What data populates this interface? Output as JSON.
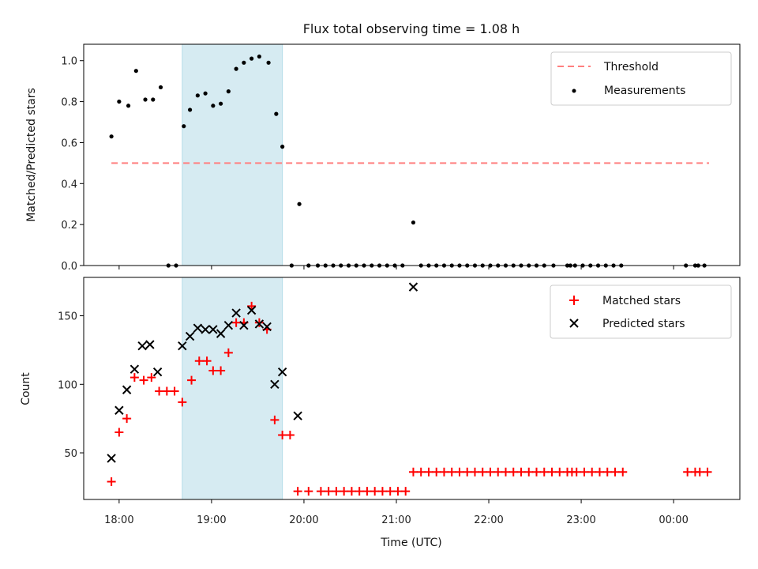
{
  "colors": {
    "threshold": "#ff7f7f",
    "measurement": "#000000",
    "matched": "#ff0000",
    "predicted": "#000000",
    "span": "#add8e6"
  },
  "chart_data": {
    "title": "Flux total observing time = 1.08 h",
    "xlabel": "Time (UTC)",
    "x_type": "time",
    "xlim": [
      "17:37",
      "00:43"
    ],
    "x_ticks": [
      "18:00",
      "19:00",
      "20:00",
      "21:00",
      "22:00",
      "23:00",
      "00:00"
    ],
    "highlight_span": [
      "18:41",
      "19:46"
    ],
    "grid": false,
    "panels": [
      {
        "type": "scatter",
        "ylabel": "Matched/Predicted stars",
        "ylim": [
          0.0,
          1.08
        ],
        "y_ticks": [
          "0.0",
          "0.2",
          "0.4",
          "0.6",
          "0.8",
          "1.0"
        ],
        "legend_position": "top-right",
        "threshold": {
          "name": "Threshold",
          "value": 0.5,
          "x_range": [
            "17:55",
            "00:23"
          ]
        },
        "series": [
          {
            "name": "Measurements",
            "marker": "dot",
            "points": [
              [
                "17:55",
                0.63
              ],
              [
                "18:00",
                0.8
              ],
              [
                "18:06",
                0.78
              ],
              [
                "18:11",
                0.95
              ],
              [
                "18:17",
                0.81
              ],
              [
                "18:22",
                0.81
              ],
              [
                "18:27",
                0.87
              ],
              [
                "18:32",
                0.0
              ],
              [
                "18:37",
                0.0
              ],
              [
                "18:42",
                0.68
              ],
              [
                "18:46",
                0.76
              ],
              [
                "18:51",
                0.83
              ],
              [
                "18:56",
                0.84
              ],
              [
                "19:01",
                0.78
              ],
              [
                "19:06",
                0.79
              ],
              [
                "19:11",
                0.85
              ],
              [
                "19:16",
                0.96
              ],
              [
                "19:21",
                0.99
              ],
              [
                "19:26",
                1.01
              ],
              [
                "19:31",
                1.02
              ],
              [
                "19:37",
                0.99
              ],
              [
                "19:42",
                0.74
              ],
              [
                "19:46",
                0.58
              ],
              [
                "19:52",
                0.0
              ],
              [
                "19:57",
                0.3
              ],
              [
                "20:03",
                0.0
              ],
              [
                "20:09",
                0.0
              ],
              [
                "20:14",
                0.0
              ],
              [
                "20:19",
                0.0
              ],
              [
                "20:24",
                0.0
              ],
              [
                "20:29",
                0.0
              ],
              [
                "20:34",
                0.0
              ],
              [
                "20:39",
                0.0
              ],
              [
                "20:44",
                0.0
              ],
              [
                "20:49",
                0.0
              ],
              [
                "20:54",
                0.0
              ],
              [
                "20:59",
                0.0
              ],
              [
                "21:04",
                0.0
              ],
              [
                "21:11",
                0.21
              ],
              [
                "21:16",
                0.0
              ],
              [
                "21:21",
                0.0
              ],
              [
                "21:26",
                0.0
              ],
              [
                "21:31",
                0.0
              ],
              [
                "21:36",
                0.0
              ],
              [
                "21:41",
                0.0
              ],
              [
                "21:46",
                0.0
              ],
              [
                "21:51",
                0.0
              ],
              [
                "21:56",
                0.0
              ],
              [
                "22:01",
                0.0
              ],
              [
                "22:06",
                0.0
              ],
              [
                "22:11",
                0.0
              ],
              [
                "22:16",
                0.0
              ],
              [
                "22:21",
                0.0
              ],
              [
                "22:26",
                0.0
              ],
              [
                "22:31",
                0.0
              ],
              [
                "22:36",
                0.0
              ],
              [
                "22:42",
                0.0
              ],
              [
                "22:51",
                0.0
              ],
              [
                "22:53",
                0.0
              ],
              [
                "22:56",
                0.0
              ],
              [
                "23:01",
                0.0
              ],
              [
                "23:06",
                0.0
              ],
              [
                "23:11",
                0.0
              ],
              [
                "23:16",
                0.0
              ],
              [
                "23:21",
                0.0
              ],
              [
                "23:26",
                0.0
              ],
              [
                "00:08",
                0.0
              ],
              [
                "00:14",
                0.0
              ],
              [
                "00:16",
                0.0
              ],
              [
                "00:20",
                0.0
              ]
            ]
          }
        ]
      },
      {
        "type": "scatter",
        "ylabel": "Count",
        "ylim": [
          16,
          178
        ],
        "y_ticks": [
          "50",
          "100",
          "150"
        ],
        "legend_position": "top-right",
        "series": [
          {
            "name": "Matched stars",
            "marker": "plus",
            "points": [
              [
                "17:55",
                29
              ],
              [
                "18:00",
                65
              ],
              [
                "18:05",
                75
              ],
              [
                "18:10",
                105
              ],
              [
                "18:16",
                103
              ],
              [
                "18:21",
                105
              ],
              [
                "18:26",
                95
              ],
              [
                "18:31",
                95
              ],
              [
                "18:36",
                95
              ],
              [
                "18:41",
                87
              ],
              [
                "18:47",
                103
              ],
              [
                "18:52",
                117
              ],
              [
                "18:57",
                117
              ],
              [
                "19:01",
                110
              ],
              [
                "19:06",
                110
              ],
              [
                "19:11",
                123
              ],
              [
                "19:16",
                145
              ],
              [
                "19:21",
                145
              ],
              [
                "19:26",
                157
              ],
              [
                "19:31",
                145
              ],
              [
                "19:36",
                140
              ],
              [
                "19:41",
                74
              ],
              [
                "19:46",
                63
              ],
              [
                "19:51",
                63
              ],
              [
                "19:56",
                22
              ],
              [
                "20:03",
                22
              ],
              [
                "20:11",
                22
              ],
              [
                "20:16",
                22
              ],
              [
                "20:21",
                22
              ],
              [
                "20:26",
                22
              ],
              [
                "20:31",
                22
              ],
              [
                "20:36",
                22
              ],
              [
                "20:41",
                22
              ],
              [
                "20:46",
                22
              ],
              [
                "20:51",
                22
              ],
              [
                "20:56",
                22
              ],
              [
                "21:01",
                22
              ],
              [
                "21:06",
                22
              ],
              [
                "21:11",
                36
              ],
              [
                "21:16",
                36
              ],
              [
                "21:21",
                36
              ],
              [
                "21:26",
                36
              ],
              [
                "21:31",
                36
              ],
              [
                "21:36",
                36
              ],
              [
                "21:41",
                36
              ],
              [
                "21:46",
                36
              ],
              [
                "21:51",
                36
              ],
              [
                "21:56",
                36
              ],
              [
                "22:01",
                36
              ],
              [
                "22:06",
                36
              ],
              [
                "22:11",
                36
              ],
              [
                "22:16",
                36
              ],
              [
                "22:21",
                36
              ],
              [
                "22:26",
                36
              ],
              [
                "22:31",
                36
              ],
              [
                "22:36",
                36
              ],
              [
                "22:41",
                36
              ],
              [
                "22:46",
                36
              ],
              [
                "22:51",
                36
              ],
              [
                "22:54",
                36
              ],
              [
                "22:57",
                36
              ],
              [
                "23:02",
                36
              ],
              [
                "23:07",
                36
              ],
              [
                "23:12",
                36
              ],
              [
                "23:17",
                36
              ],
              [
                "23:22",
                36
              ],
              [
                "23:27",
                36
              ],
              [
                "00:09",
                36
              ],
              [
                "00:14",
                36
              ],
              [
                "00:17",
                36
              ],
              [
                "00:22",
                36
              ]
            ]
          },
          {
            "name": "Predicted stars",
            "marker": "cross",
            "points": [
              [
                "17:55",
                46
              ],
              [
                "18:00",
                81
              ],
              [
                "18:05",
                96
              ],
              [
                "18:10",
                111
              ],
              [
                "18:15",
                128
              ],
              [
                "18:20",
                129
              ],
              [
                "18:25",
                109
              ],
              [
                "18:41",
                128
              ],
              [
                "18:46",
                135
              ],
              [
                "18:51",
                141
              ],
              [
                "18:56",
                140
              ],
              [
                "19:01",
                140
              ],
              [
                "19:06",
                137
              ],
              [
                "19:11",
                143
              ],
              [
                "19:16",
                152
              ],
              [
                "19:21",
                143
              ],
              [
                "19:26",
                154
              ],
              [
                "19:31",
                144
              ],
              [
                "19:36",
                142
              ],
              [
                "19:41",
                100
              ],
              [
                "19:46",
                109
              ],
              [
                "19:56",
                77
              ],
              [
                "21:11",
                171
              ]
            ]
          }
        ]
      }
    ]
  }
}
